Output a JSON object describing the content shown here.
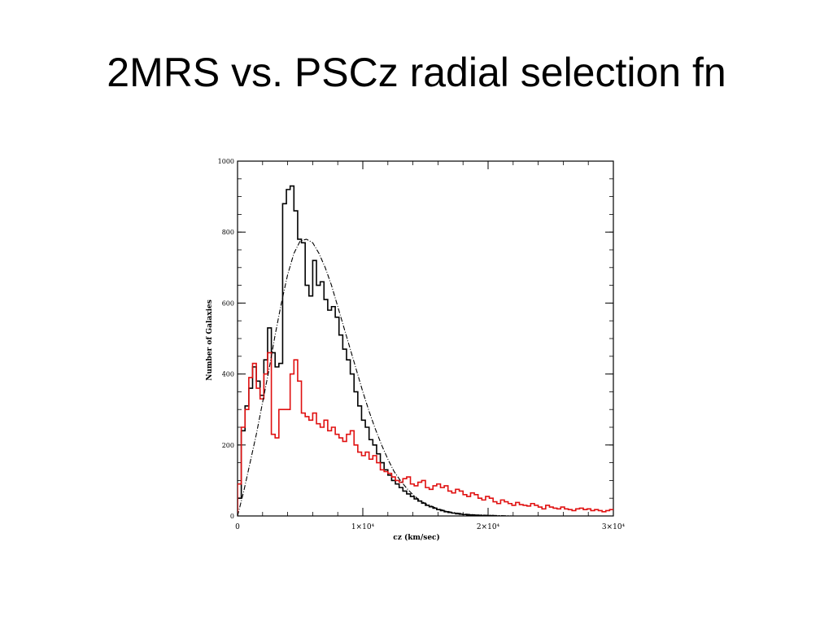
{
  "slide": {
    "title": "2MRS vs. PSCz radial selection fn"
  },
  "chart_data": {
    "type": "line",
    "xlabel": "cz (km/sec)",
    "ylabel": "Number of Galaxies",
    "xlim": [
      0,
      30000
    ],
    "ylim": [
      0,
      1000
    ],
    "x_ticks": [
      {
        "value": 0,
        "label": "0"
      },
      {
        "value": 10000,
        "label": "1×10⁴"
      },
      {
        "value": 20000,
        "label": "2×10⁴"
      },
      {
        "value": 30000,
        "label": "3×10⁴"
      }
    ],
    "y_ticks": [
      {
        "value": 0,
        "label": "0"
      },
      {
        "value": 200,
        "label": "200"
      },
      {
        "value": 400,
        "label": "400"
      },
      {
        "value": 600,
        "label": "600"
      },
      {
        "value": 800,
        "label": "800"
      },
      {
        "value": 1000,
        "label": "1000"
      }
    ],
    "colors": {
      "black": "#000000",
      "red": "#e01010"
    },
    "series": [
      {
        "style": "step",
        "color": "#000000",
        "bin_width": 300,
        "x0": 0,
        "values": [
          50,
          240,
          310,
          360,
          420,
          380,
          340,
          440,
          530,
          460,
          420,
          430,
          880,
          920,
          930,
          860,
          780,
          770,
          650,
          620,
          720,
          650,
          660,
          610,
          580,
          590,
          560,
          510,
          470,
          440,
          400,
          350,
          310,
          270,
          250,
          215,
          200,
          175,
          150,
          130,
          115,
          100,
          90,
          80,
          70,
          62,
          55,
          48,
          42,
          36,
          30,
          26,
          22,
          18,
          15,
          12,
          10,
          8,
          6,
          5,
          4,
          3,
          3,
          2,
          2,
          1,
          1,
          1,
          0,
          0
        ]
      },
      {
        "style": "step",
        "color": "#e01010",
        "bin_width": 300,
        "x0": 0,
        "values": [
          90,
          250,
          300,
          390,
          430,
          360,
          330,
          400,
          460,
          230,
          220,
          300,
          300,
          300,
          400,
          440,
          380,
          290,
          280,
          270,
          290,
          260,
          250,
          270,
          240,
          250,
          230,
          220,
          210,
          230,
          240,
          200,
          180,
          170,
          180,
          160,
          170,
          150,
          130,
          125,
          120,
          110,
          100,
          95,
          105,
          110,
          90,
          85,
          95,
          100,
          80,
          75,
          85,
          90,
          80,
          85,
          70,
          65,
          75,
          70,
          60,
          55,
          65,
          60,
          50,
          45,
          55,
          50,
          40,
          35,
          45,
          40,
          35,
          30,
          38,
          32,
          30,
          28,
          35,
          30,
          25,
          20,
          30,
          25,
          22,
          20,
          25,
          20,
          18,
          15,
          20,
          22,
          18,
          20,
          15,
          18,
          15,
          12,
          15,
          18
        ]
      },
      {
        "style": "dashed",
        "color": "#000000",
        "x": [
          0,
          500,
          1000,
          1500,
          2000,
          2500,
          3000,
          3500,
          4000,
          4500,
          5000,
          5500,
          6000,
          6500,
          7000,
          7500,
          8000,
          8500,
          9000,
          9500,
          10000,
          10500,
          11000,
          11500,
          12000,
          12500,
          13000,
          13500,
          14000,
          14500,
          15000,
          16000,
          17000,
          18000,
          19000,
          20000,
          21000,
          22000,
          23000,
          24000,
          25000
        ],
        "y": [
          0,
          70,
          150,
          230,
          320,
          410,
          510,
          600,
          680,
          740,
          775,
          780,
          770,
          740,
          700,
          650,
          590,
          530,
          470,
          410,
          350,
          295,
          245,
          200,
          160,
          125,
          100,
          78,
          60,
          45,
          35,
          20,
          11,
          6,
          3,
          2,
          1,
          0,
          0,
          0,
          0
        ]
      }
    ]
  }
}
